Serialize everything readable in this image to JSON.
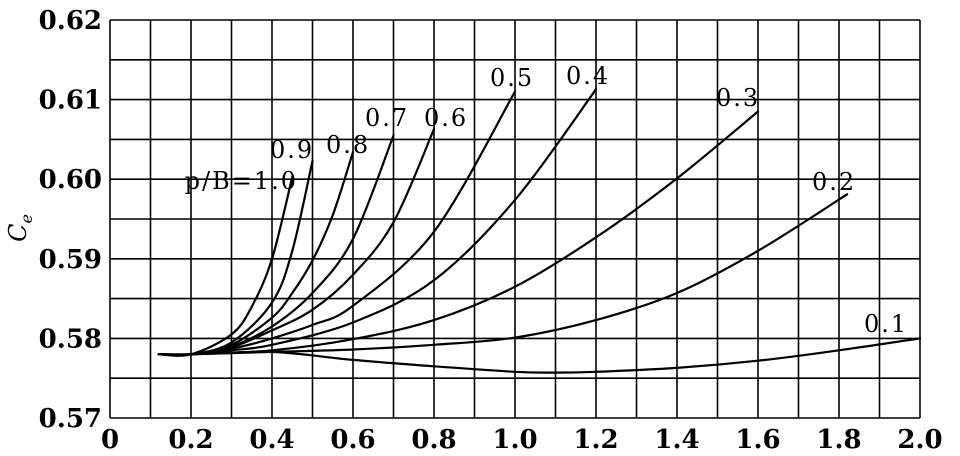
{
  "chart_data": {
    "type": "line",
    "title": "",
    "xlabel": "",
    "ylabel": "C",
    "ylabel_subscript": "e",
    "xlim": [
      0,
      2.0
    ],
    "ylim": [
      0.57,
      0.62
    ],
    "grid": true,
    "x_ticks": [
      0,
      0.2,
      0.4,
      0.6,
      0.8,
      1.0,
      1.2,
      1.4,
      1.6,
      1.8,
      2.0
    ],
    "x_tick_labels": [
      "0",
      "0.2",
      "0.4",
      "0.6",
      "0.8",
      "1.0",
      "1.2",
      "1.4",
      "1.6",
      "1.8",
      "2.0"
    ],
    "y_ticks": [
      0.57,
      0.58,
      0.59,
      0.6,
      0.61,
      0.62
    ],
    "y_tick_labels": [
      "0.57",
      "0.58",
      "0.59",
      "0.60",
      "0.61",
      "0.62"
    ],
    "series": [
      {
        "name": "0.1",
        "label_text": "0.1",
        "x": [
          0.12,
          0.2,
          0.4,
          0.6,
          0.8,
          1.0,
          1.1,
          1.2,
          1.4,
          1.6,
          1.8,
          2.0
        ],
        "y": [
          0.578,
          0.578,
          0.5783,
          0.5773,
          0.5765,
          0.5758,
          0.5757,
          0.5758,
          0.5763,
          0.5772,
          0.5785,
          0.58
        ]
      },
      {
        "name": "0.2",
        "label_text": "0.2",
        "x": [
          0.12,
          0.2,
          0.4,
          0.6,
          0.8,
          1.0,
          1.2,
          1.4,
          1.6,
          1.82
        ],
        "y": [
          0.578,
          0.578,
          0.5783,
          0.5786,
          0.5792,
          0.5801,
          0.5823,
          0.5857,
          0.591,
          0.5981
        ]
      },
      {
        "name": "0.3",
        "label_text": "0.3",
        "x": [
          0.12,
          0.2,
          0.4,
          0.6,
          0.8,
          1.0,
          1.2,
          1.4,
          1.6
        ],
        "y": [
          0.578,
          0.578,
          0.5785,
          0.5799,
          0.5823,
          0.5865,
          0.5927,
          0.6001,
          0.6085
        ]
      },
      {
        "name": "0.4",
        "label_text": "0.4",
        "x": [
          0.12,
          0.2,
          0.3,
          0.4,
          0.6,
          0.8,
          1.0,
          1.2
        ],
        "y": [
          0.578,
          0.578,
          0.5785,
          0.5792,
          0.582,
          0.5873,
          0.5974,
          0.6113
        ]
      },
      {
        "name": "0.5",
        "label_text": "0.5",
        "x": [
          0.12,
          0.2,
          0.3,
          0.4,
          0.5,
          0.6,
          0.8,
          1.0
        ],
        "y": [
          0.578,
          0.578,
          0.5787,
          0.58,
          0.5817,
          0.5841,
          0.5934,
          0.611
        ]
      },
      {
        "name": "0.6",
        "label_text": "0.6",
        "x": [
          0.12,
          0.2,
          0.3,
          0.4,
          0.5,
          0.6,
          0.7,
          0.8
        ],
        "y": [
          0.578,
          0.578,
          0.5789,
          0.581,
          0.5836,
          0.588,
          0.5946,
          0.6063
        ]
      },
      {
        "name": "0.7",
        "label_text": "0.7",
        "x": [
          0.12,
          0.2,
          0.3,
          0.4,
          0.5,
          0.6,
          0.7
        ],
        "y": [
          0.578,
          0.578,
          0.579,
          0.5815,
          0.5857,
          0.5925,
          0.6055
        ]
      },
      {
        "name": "0.8",
        "label_text": "0.8",
        "x": [
          0.12,
          0.2,
          0.3,
          0.4,
          0.45,
          0.5,
          0.55,
          0.6
        ],
        "y": [
          0.578,
          0.578,
          0.5792,
          0.5826,
          0.5857,
          0.5898,
          0.5955,
          0.6034
        ]
      },
      {
        "name": "0.9",
        "label_text": "0.9",
        "x": [
          0.12,
          0.2,
          0.3,
          0.4,
          0.45,
          0.5
        ],
        "y": [
          0.578,
          0.578,
          0.5795,
          0.5845,
          0.591,
          0.6023
        ]
      },
      {
        "name": "p/B=1.0",
        "label_text": "p/B=1.0",
        "x": [
          0.12,
          0.2,
          0.3,
          0.35,
          0.4,
          0.45
        ],
        "y": [
          0.578,
          0.578,
          0.5805,
          0.584,
          0.59,
          0.6003
        ]
      }
    ]
  }
}
